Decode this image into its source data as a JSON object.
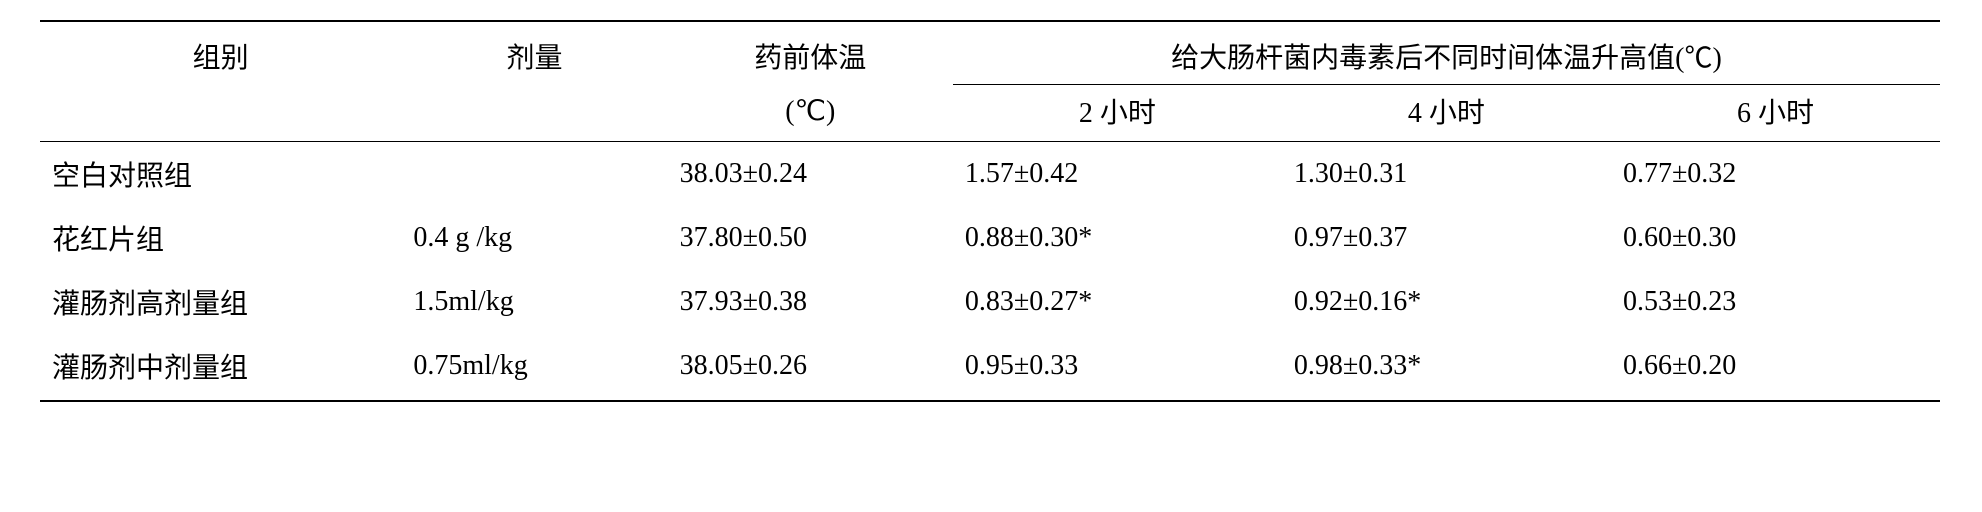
{
  "table": {
    "type": "table",
    "font_color": "#000000",
    "background_color": "#ffffff",
    "border_color": "#000000",
    "header": {
      "col1": "组别",
      "col2": "剂量",
      "col3": "药前体温",
      "col3_sub": "(℃)",
      "spanner": "给大肠杆菌内毒素后不同时间体温升高值(℃)",
      "time1": "2 小时",
      "time2": "4 小时",
      "time3": "6 小时"
    },
    "rows": [
      {
        "group": "空白对照组",
        "dose": "",
        "pretemp": "38.03±0.24",
        "t2h": "1.57±0.42",
        "t4h": "1.30±0.31",
        "t6h": "0.77±0.32"
      },
      {
        "group": "花红片组",
        "dose": "0.4 g /kg",
        "pretemp": "37.80±0.50",
        "t2h": "0.88±0.30*",
        "t4h": "0.97±0.37",
        "t6h": "0.60±0.30"
      },
      {
        "group": "灌肠剂高剂量组",
        "dose": "1.5ml/kg",
        "pretemp": "37.93±0.38",
        "t2h": "0.83±0.27*",
        "t4h": "0.92±0.16*",
        "t6h": "0.53±0.23"
      },
      {
        "group": "灌肠剂中剂量组",
        "dose": "0.75ml/kg",
        "pretemp": "38.05±0.26",
        "t2h": "0.95±0.33",
        "t4h": "0.98±0.33*",
        "t6h": "0.66±0.20"
      }
    ]
  }
}
